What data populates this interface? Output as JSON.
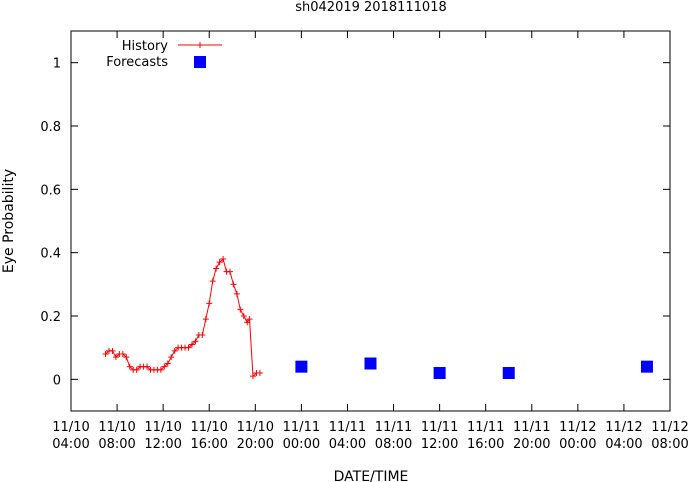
{
  "chart_data": {
    "type": "line",
    "title": "sh042019 2018111018",
    "xlabel": "DATE/TIME",
    "ylabel": "Eye Probability",
    "ylim": [
      -0.1,
      1.1
    ],
    "yticks": [
      {
        "value": 0,
        "label": "0"
      },
      {
        "value": 0.2,
        "label": "0.2"
      },
      {
        "value": 0.4,
        "label": "0.4"
      },
      {
        "value": 0.6,
        "label": "0.6"
      },
      {
        "value": 0.8,
        "label": "0.8"
      },
      {
        "value": 1,
        "label": "1"
      }
    ],
    "xlim_hours": [
      0,
      52
    ],
    "xticks": [
      {
        "hour": 0,
        "date": "11/10",
        "time": "04:00"
      },
      {
        "hour": 4,
        "date": "11/10",
        "time": "08:00"
      },
      {
        "hour": 8,
        "date": "11/10",
        "time": "12:00"
      },
      {
        "hour": 12,
        "date": "11/10",
        "time": "16:00"
      },
      {
        "hour": 16,
        "date": "11/10",
        "time": "20:00"
      },
      {
        "hour": 20,
        "date": "11/11",
        "time": "00:00"
      },
      {
        "hour": 24,
        "date": "11/11",
        "time": "04:00"
      },
      {
        "hour": 28,
        "date": "11/11",
        "time": "08:00"
      },
      {
        "hour": 32,
        "date": "11/11",
        "time": "12:00"
      },
      {
        "hour": 36,
        "date": "11/11",
        "time": "16:00"
      },
      {
        "hour": 40,
        "date": "11/11",
        "time": "20:00"
      },
      {
        "hour": 44,
        "date": "11/12",
        "time": "00:00"
      },
      {
        "hour": 48,
        "date": "11/12",
        "time": "04:00"
      },
      {
        "hour": 52,
        "date": "11/12",
        "time": "08:00"
      }
    ],
    "legend_position": "top-left",
    "series": [
      {
        "name": "History",
        "style": "line+cross",
        "color": "#ff0000",
        "points": [
          {
            "x": 3.0,
            "y": 0.08
          },
          {
            "x": 3.3,
            "y": 0.09
          },
          {
            "x": 3.6,
            "y": 0.09
          },
          {
            "x": 3.9,
            "y": 0.07
          },
          {
            "x": 4.2,
            "y": 0.08
          },
          {
            "x": 4.5,
            "y": 0.08
          },
          {
            "x": 4.8,
            "y": 0.07
          },
          {
            "x": 5.1,
            "y": 0.04
          },
          {
            "x": 5.4,
            "y": 0.03
          },
          {
            "x": 5.7,
            "y": 0.03
          },
          {
            "x": 6.0,
            "y": 0.04
          },
          {
            "x": 6.3,
            "y": 0.04
          },
          {
            "x": 6.6,
            "y": 0.04
          },
          {
            "x": 6.9,
            "y": 0.03
          },
          {
            "x": 7.2,
            "y": 0.03
          },
          {
            "x": 7.5,
            "y": 0.03
          },
          {
            "x": 7.8,
            "y": 0.03
          },
          {
            "x": 8.1,
            "y": 0.04
          },
          {
            "x": 8.4,
            "y": 0.05
          },
          {
            "x": 8.7,
            "y": 0.07
          },
          {
            "x": 9.0,
            "y": 0.09
          },
          {
            "x": 9.3,
            "y": 0.1
          },
          {
            "x": 9.6,
            "y": 0.1
          },
          {
            "x": 9.9,
            "y": 0.1
          },
          {
            "x": 10.2,
            "y": 0.1
          },
          {
            "x": 10.5,
            "y": 0.11
          },
          {
            "x": 10.8,
            "y": 0.12
          },
          {
            "x": 11.1,
            "y": 0.14
          },
          {
            "x": 11.4,
            "y": 0.14
          },
          {
            "x": 11.7,
            "y": 0.19
          },
          {
            "x": 12.0,
            "y": 0.24
          },
          {
            "x": 12.3,
            "y": 0.31
          },
          {
            "x": 12.6,
            "y": 0.35
          },
          {
            "x": 12.9,
            "y": 0.37
          },
          {
            "x": 13.2,
            "y": 0.38
          },
          {
            "x": 13.5,
            "y": 0.34
          },
          {
            "x": 13.8,
            "y": 0.34
          },
          {
            "x": 14.1,
            "y": 0.3
          },
          {
            "x": 14.4,
            "y": 0.27
          },
          {
            "x": 14.7,
            "y": 0.22
          },
          {
            "x": 15.0,
            "y": 0.2
          },
          {
            "x": 15.3,
            "y": 0.18
          },
          {
            "x": 15.5,
            "y": 0.19
          },
          {
            "x": 15.8,
            "y": 0.01
          },
          {
            "x": 16.1,
            "y": 0.02
          },
          {
            "x": 16.4,
            "y": 0.02
          }
        ]
      },
      {
        "name": "Forecasts",
        "style": "square",
        "color": "#0000ff",
        "points": [
          {
            "x": 20,
            "y": 0.04
          },
          {
            "x": 26,
            "y": 0.05
          },
          {
            "x": 32,
            "y": 0.02
          },
          {
            "x": 38,
            "y": 0.02
          },
          {
            "x": 50,
            "y": 0.04
          }
        ]
      }
    ]
  }
}
